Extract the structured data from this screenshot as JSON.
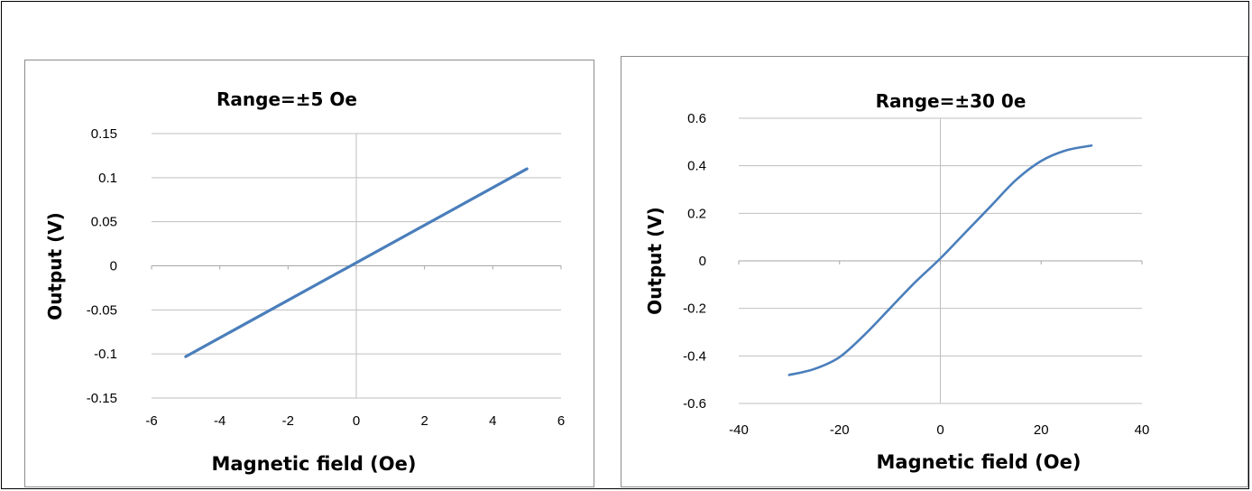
{
  "chart_data": [
    {
      "type": "line",
      "title": "Range=±5 Oe",
      "xlabel": "Magnetic field (Oe)",
      "ylabel": "Output (V)",
      "xlim": [
        -6,
        6
      ],
      "ylim": [
        -0.15,
        0.15
      ],
      "x_ticks": [
        -6,
        -4,
        -2,
        0,
        2,
        4,
        6
      ],
      "y_ticks": [
        -0.15,
        -0.1,
        -0.05,
        0,
        0.05,
        0.1,
        0.15
      ],
      "x_tick_labels": [
        "-6",
        "-4",
        "-2",
        "0",
        "2",
        "4",
        "6"
      ],
      "y_tick_labels": [
        "-0.15",
        "-0.1",
        "-0.05",
        "0",
        "0.05",
        "0.1",
        "0.15"
      ],
      "grid": "horizontal",
      "series": [
        {
          "color": "#4a7ebb",
          "x": [
            -5,
            5
          ],
          "y": [
            -0.103,
            0.11
          ]
        }
      ]
    },
    {
      "type": "line",
      "title": "Range=±30 0e",
      "xlabel": "Magnetic field (Oe)",
      "ylabel": "Output (V)",
      "xlim": [
        -40,
        40
      ],
      "ylim": [
        -0.6,
        0.6
      ],
      "x_ticks": [
        -40,
        -20,
        0,
        20,
        40
      ],
      "y_ticks": [
        -0.6,
        -0.4,
        -0.2,
        0,
        0.2,
        0.4,
        0.6
      ],
      "x_tick_labels": [
        "-40",
        "-20",
        "0",
        "20",
        "40"
      ],
      "y_tick_labels": [
        "-0.6",
        "-0.4",
        "-0.2",
        "0",
        "0.2",
        "0.4",
        "0.6"
      ],
      "grid": "horizontal",
      "series": [
        {
          "color": "#4a7ebb",
          "x": [
            -30,
            -25,
            -20,
            -15,
            -10,
            -5,
            0,
            5,
            10,
            15,
            20,
            25,
            30
          ],
          "y": [
            -0.48,
            -0.455,
            -0.405,
            -0.31,
            -0.2,
            -0.09,
            0.01,
            0.12,
            0.23,
            0.34,
            0.42,
            0.465,
            0.485
          ]
        }
      ]
    }
  ]
}
